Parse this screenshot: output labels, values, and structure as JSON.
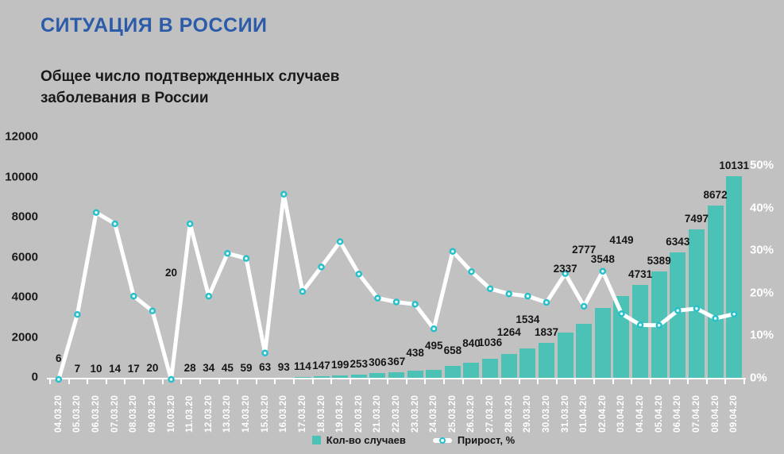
{
  "slide": {
    "title": "СИТУАЦИЯ В РОССИИ",
    "subtitle": "Общее число подтвержденных случаев заболевания в России"
  },
  "legend": {
    "cases_label": "Кол-во случаев",
    "growth_label": "Прирост, %"
  },
  "colors": {
    "background": "#c1c1c1",
    "title_blue": "#2b5ba9",
    "text_black": "#1a1a1a",
    "bar_teal": "#4bc2b5",
    "line_white": "#ffffff",
    "marker_cyan": "#26bfca",
    "axis_label_white": "#ffffff"
  },
  "chart_data": {
    "type": "bar",
    "combo": "bar+line",
    "title": "Общее число подтвержденных случаев заболевания в России",
    "categories": [
      "04.03.20",
      "05.03.20",
      "06.03.20",
      "07.03.20",
      "08.03.20",
      "09.03.20",
      "10.03.20",
      "11.03.20",
      "12.03.20",
      "13.03.20",
      "14.03.20",
      "15.03.20",
      "16.03.20",
      "17.03.20",
      "18.03.20",
      "19.03.20",
      "20.03.20",
      "21.03.20",
      "22.03.20",
      "23.03.20",
      "24.03.20",
      "25.03.20",
      "26.03.20",
      "27.03.20",
      "28.03.20",
      "29.03.20",
      "30.03.20",
      "31.03.20",
      "01.04.20",
      "02.04.20",
      "03.04.20",
      "04.04.20",
      "05.04.20",
      "06.04.20",
      "07.04.20",
      "08.04.20",
      "09.04.20"
    ],
    "series": [
      {
        "name": "Кол-во случаев",
        "type": "bar",
        "axis": "left",
        "color": "#4bc2b5",
        "values": [
          6,
          7,
          10,
          14,
          17,
          20,
          20,
          28,
          34,
          45,
          59,
          63,
          93,
          114,
          147,
          199,
          253,
          306,
          367,
          438,
          495,
          658,
          840,
          1036,
          1264,
          1534,
          1837,
          2337,
          2777,
          3548,
          4149,
          4731,
          5389,
          6343,
          7497,
          8672,
          10131
        ]
      },
      {
        "name": "Прирост, %",
        "type": "line",
        "axis": "right",
        "color": "#ffffff",
        "marker_color": "#26bfca",
        "estimated": true,
        "values": [
          0,
          16.7,
          42.9,
          40.0,
          21.4,
          17.6,
          0.0,
          40.0,
          21.4,
          32.4,
          31.1,
          6.8,
          47.6,
          22.6,
          28.9,
          35.4,
          27.1,
          20.9,
          19.9,
          19.3,
          13.0,
          32.9,
          27.7,
          23.3,
          22.0,
          21.4,
          19.8,
          27.2,
          18.8,
          27.8,
          16.9,
          14.0,
          13.9,
          17.7,
          18.2,
          15.7,
          16.8
        ]
      }
    ],
    "bar_value_labels": [
      "6",
      "7",
      "10",
      "14",
      "17",
      "20",
      "20",
      "28",
      "34",
      "45",
      "59",
      "63",
      "93",
      "114",
      "147",
      "199",
      "253",
      "306",
      "367",
      "438",
      "495",
      "658",
      "840",
      "1036",
      "1264",
      "1534",
      "1837",
      "2337",
      "2777",
      "3548",
      "4149",
      "4731",
      "5389",
      "6343",
      "7497",
      "8672",
      "10131"
    ],
    "left_axis": {
      "min": 0,
      "max": 12000,
      "ticks": [
        0,
        2000,
        4000,
        6000,
        8000,
        10000,
        12000
      ]
    },
    "right_axis": {
      "min": 0,
      "max": 50,
      "ticks": [
        0,
        10,
        20,
        30,
        40,
        50
      ],
      "tick_labels": [
        "0%",
        "10%",
        "20%",
        "30%",
        "40%",
        "50%"
      ]
    },
    "grid": false,
    "legend_position": "bottom"
  }
}
